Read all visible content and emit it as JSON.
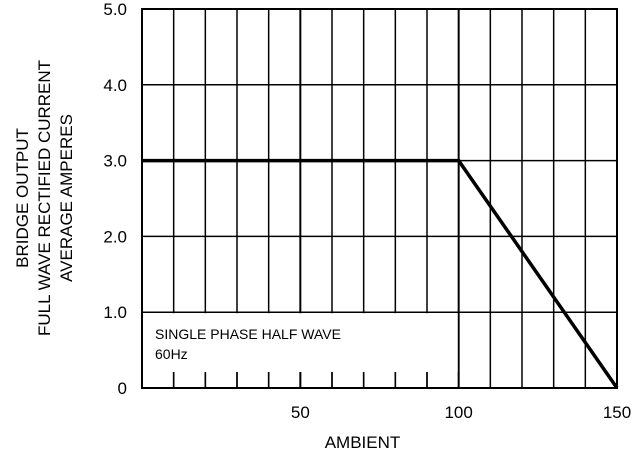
{
  "chart_data": {
    "type": "line",
    "xlabel": "AMBIENT",
    "ylabel_lines": [
      "BRIDGE OUTPUT",
      "FULL WAVE RECTIFIED CURRENT",
      "AVERAGE AMPERES"
    ],
    "xlim": [
      0,
      150
    ],
    "ylim": [
      0,
      5
    ],
    "x_ticks": [
      {
        "value": 50,
        "label": "50"
      },
      {
        "value": 100,
        "label": "100"
      },
      {
        "value": 150,
        "label": "150"
      }
    ],
    "y_ticks": [
      {
        "value": 0,
        "label": "0"
      },
      {
        "value": 1,
        "label": "1.0"
      },
      {
        "value": 2,
        "label": "2.0"
      },
      {
        "value": 3,
        "label": "3.0"
      },
      {
        "value": 4,
        "label": "4.0"
      },
      {
        "value": 5,
        "label": "5.0"
      }
    ],
    "x_minor_step": 10,
    "grid": true,
    "series": [
      {
        "points": [
          {
            "x": 0,
            "y": 3.0
          },
          {
            "x": 100,
            "y": 3.0
          },
          {
            "x": 150,
            "y": 0
          }
        ]
      }
    ],
    "annotation": {
      "lines": [
        "SINGLE PHASE HALF WAVE",
        "60Hz"
      ]
    }
  }
}
